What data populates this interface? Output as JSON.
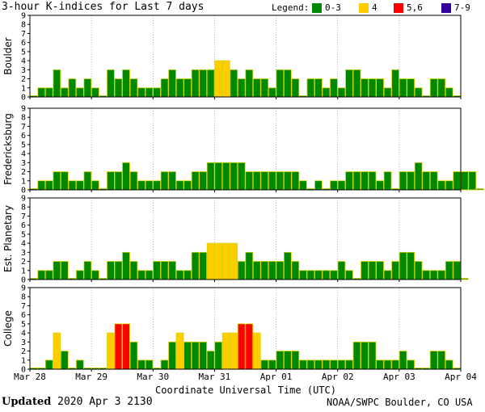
{
  "title": "3-hour K-indices for Last 7 days",
  "legend": {
    "label": "Legend:",
    "items": [
      {
        "label": "0-3",
        "color": "#008800"
      },
      {
        "label": "4",
        "color": "#ffcc00"
      },
      {
        "label": "5,6",
        "color": "#ff0000"
      },
      {
        "label": "7-9",
        "color": "#330099"
      }
    ]
  },
  "footer": {
    "updated_label": "Updated",
    "updated_value": "2020 Apr  3 2130",
    "source": "NOAA/SWPC Boulder, CO USA"
  },
  "chart_data": {
    "type": "bar",
    "xlabel": "Coordinate Universal Time (UTC)",
    "x_tick_labels": [
      "Mar 28",
      "Mar 29",
      "Mar 30",
      "Mar 31",
      "Apr 01",
      "Apr 02",
      "Apr 03",
      "Apr 04"
    ],
    "ylim": [
      0,
      9
    ],
    "y_ticks": [
      0,
      1,
      2,
      3,
      4,
      5,
      6,
      7,
      8,
      9
    ],
    "color_scale": [
      {
        "range": "0-3",
        "color": "#008800"
      },
      {
        "range": "4",
        "color": "#ffcc00"
      },
      {
        "range": "5,6",
        "color": "#ff0000"
      },
      {
        "range": "7-9",
        "color": "#330099"
      }
    ],
    "panels": [
      {
        "name": "Boulder",
        "values": [
          0,
          1,
          1,
          3,
          1,
          2,
          1,
          2,
          1,
          0,
          3,
          2,
          3,
          2,
          1,
          1,
          1,
          2,
          3,
          2,
          2,
          3,
          3,
          3,
          4,
          4,
          3,
          2,
          3,
          2,
          2,
          1,
          3,
          3,
          2,
          0,
          2,
          2,
          1,
          2,
          1,
          3,
          3,
          2,
          2,
          2,
          1,
          3,
          2,
          2,
          1,
          0,
          2,
          2,
          1,
          0
        ]
      },
      {
        "name": "Fredericksburg",
        "values": [
          0,
          1,
          1,
          2,
          2,
          1,
          1,
          2,
          1,
          0,
          2,
          2,
          3,
          2,
          1,
          1,
          1,
          2,
          2,
          1,
          1,
          2,
          2,
          3,
          3,
          3,
          3,
          3,
          2,
          2,
          2,
          2,
          2,
          2,
          2,
          1,
          0,
          1,
          0,
          1,
          1,
          2,
          2,
          2,
          2,
          1,
          2,
          0,
          2,
          2,
          3,
          2,
          2,
          1,
          1,
          2,
          2,
          2,
          0
        ]
      },
      {
        "name": "Est. Planetary",
        "values": [
          0,
          1,
          1,
          2,
          2,
          0,
          1,
          2,
          1,
          0,
          2,
          2,
          3,
          2,
          1,
          1,
          2,
          2,
          2,
          1,
          1,
          3,
          3,
          4,
          4,
          4,
          4,
          2,
          3,
          2,
          2,
          2,
          2,
          3,
          2,
          1,
          1,
          1,
          1,
          1,
          2,
          1,
          0,
          2,
          2,
          2,
          1,
          2,
          3,
          3,
          2,
          1,
          1,
          1,
          2,
          2,
          0
        ]
      },
      {
        "name": "College",
        "values": [
          0,
          0,
          1,
          4,
          2,
          0,
          1,
          0,
          0,
          0,
          4,
          5,
          5,
          3,
          1,
          1,
          0,
          1,
          3,
          4,
          3,
          3,
          3,
          2,
          3,
          4,
          4,
          5,
          5,
          4,
          1,
          1,
          2,
          2,
          2,
          1,
          1,
          1,
          1,
          1,
          1,
          1,
          3,
          3,
          3,
          1,
          1,
          1,
          2,
          1,
          0,
          0,
          2,
          2,
          1,
          0
        ]
      }
    ]
  }
}
